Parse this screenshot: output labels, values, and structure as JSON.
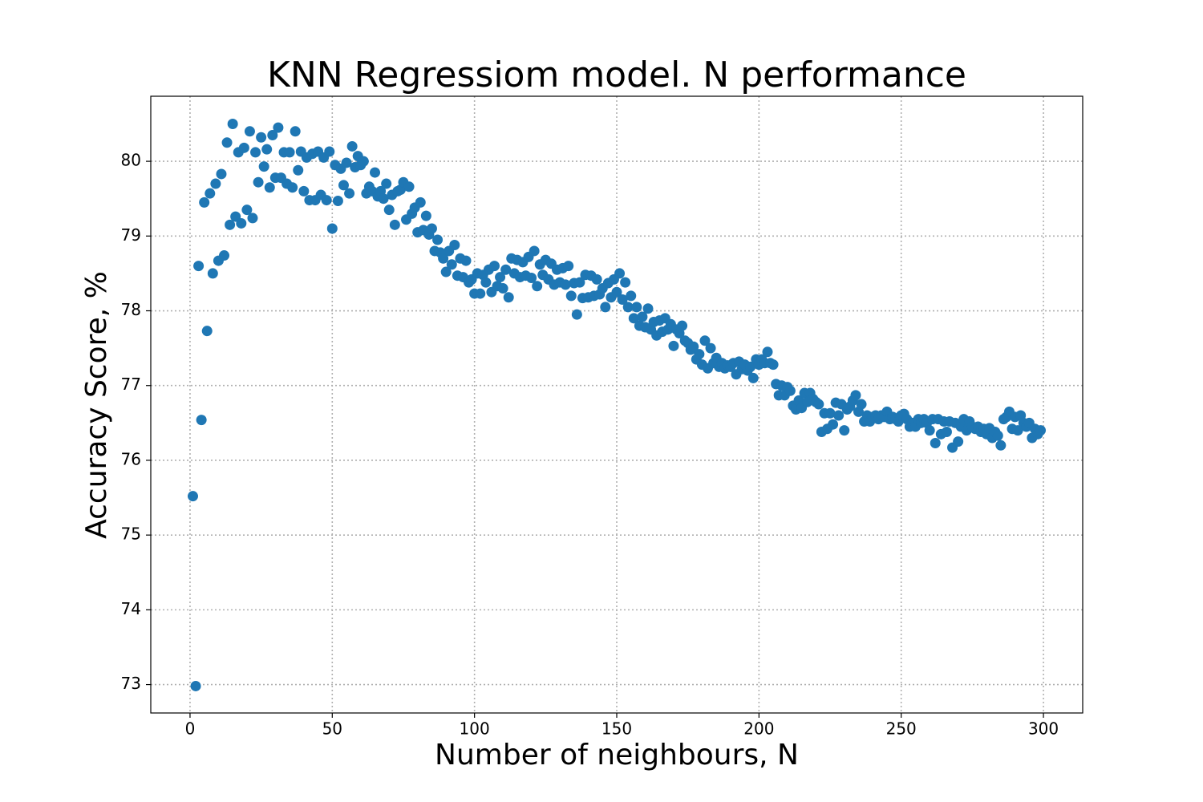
{
  "chart_data": {
    "type": "scatter",
    "title": "KNN Regressiom model. N performance",
    "x_label": "Number of neighbours, N",
    "y_label": "Accuracy Score, %",
    "color": "#1f77b4",
    "grid": true,
    "xlim": [
      -13.8,
      313.8
    ],
    "ylim": [
      72.62,
      80.87
    ],
    "xticks": [
      0,
      50,
      100,
      150,
      200,
      250,
      300
    ],
    "yticks": [
      73,
      74,
      75,
      76,
      77,
      78,
      79,
      80
    ],
    "x": [
      1,
      2,
      3,
      4,
      5,
      6,
      7,
      8,
      9,
      10,
      11,
      12,
      13,
      14,
      15,
      16,
      17,
      18,
      19,
      20,
      21,
      22,
      23,
      24,
      25,
      26,
      27,
      28,
      29,
      30,
      31,
      32,
      33,
      34,
      35,
      36,
      37,
      38,
      39,
      40,
      41,
      42,
      43,
      44,
      45,
      46,
      47,
      48,
      49,
      50,
      51,
      52,
      53,
      54,
      55,
      56,
      57,
      58,
      59,
      60,
      61,
      62,
      63,
      64,
      65,
      66,
      67,
      68,
      69,
      70,
      71,
      72,
      73,
      74,
      75,
      76,
      77,
      78,
      79,
      80,
      81,
      82,
      83,
      84,
      85,
      86,
      87,
      88,
      89,
      90,
      91,
      92,
      93,
      94,
      95,
      96,
      97,
      98,
      99,
      100,
      101,
      102,
      103,
      104,
      105,
      106,
      107,
      108,
      109,
      110,
      111,
      112,
      113,
      114,
      115,
      116,
      117,
      118,
      119,
      120,
      121,
      122,
      123,
      124,
      125,
      126,
      127,
      128,
      129,
      130,
      131,
      132,
      133,
      134,
      135,
      136,
      137,
      138,
      139,
      140,
      141,
      142,
      143,
      144,
      145,
      146,
      147,
      148,
      149,
      150,
      151,
      152,
      153,
      154,
      155,
      156,
      157,
      158,
      159,
      160,
      161,
      162,
      163,
      164,
      165,
      166,
      167,
      168,
      169,
      170,
      171,
      172,
      173,
      174,
      175,
      176,
      177,
      178,
      179,
      180,
      181,
      182,
      183,
      184,
      185,
      186,
      187,
      188,
      189,
      190,
      191,
      192,
      193,
      194,
      195,
      196,
      197,
      198,
      199,
      200,
      201,
      202,
      203,
      204,
      205,
      206,
      207,
      208,
      209,
      210,
      211,
      212,
      213,
      214,
      215,
      216,
      217,
      218,
      219,
      220,
      221,
      222,
      223,
      224,
      225,
      226,
      227,
      228,
      229,
      230,
      231,
      232,
      233,
      234,
      235,
      236,
      237,
      238,
      239,
      240,
      241,
      242,
      243,
      244,
      245,
      246,
      247,
      248,
      249,
      250,
      251,
      252,
      253,
      254,
      255,
      256,
      257,
      258,
      259,
      260,
      261,
      262,
      263,
      264,
      265,
      266,
      267,
      268,
      269,
      270,
      271,
      272,
      273,
      274,
      275,
      276,
      277,
      278,
      279,
      280,
      281,
      282,
      283,
      284,
      285,
      286,
      287,
      288,
      289,
      290,
      291,
      292,
      293,
      294,
      295,
      296,
      297,
      298,
      299
    ],
    "values": [
      75.52,
      72.98,
      78.6,
      76.54,
      79.45,
      77.73,
      79.57,
      78.5,
      79.7,
      78.67,
      79.83,
      78.74,
      80.25,
      79.15,
      80.5,
      79.26,
      80.12,
      79.17,
      80.18,
      79.35,
      80.4,
      79.24,
      80.12,
      79.72,
      80.32,
      79.93,
      80.16,
      79.65,
      80.35,
      79.78,
      80.45,
      79.78,
      80.12,
      79.7,
      80.12,
      79.65,
      80.4,
      79.88,
      80.13,
      79.6,
      80.05,
      79.48,
      80.1,
      79.48,
      80.13,
      79.55,
      80.05,
      79.48,
      80.13,
      79.1,
      79.95,
      79.47,
      79.9,
      79.68,
      79.98,
      79.57,
      80.2,
      79.92,
      80.07,
      79.95,
      80.0,
      79.57,
      79.66,
      79.6,
      79.85,
      79.53,
      79.6,
      79.5,
      79.7,
      79.35,
      79.55,
      79.15,
      79.6,
      79.62,
      79.72,
      79.22,
      79.66,
      79.3,
      79.38,
      79.05,
      79.45,
      79.08,
      79.27,
      79.02,
      79.1,
      78.8,
      78.95,
      78.78,
      78.7,
      78.52,
      78.8,
      78.62,
      78.88,
      78.47,
      78.7,
      78.45,
      78.67,
      78.38,
      78.42,
      78.23,
      78.5,
      78.23,
      78.48,
      78.38,
      78.55,
      78.25,
      78.6,
      78.33,
      78.45,
      78.3,
      78.55,
      78.18,
      78.7,
      78.5,
      78.68,
      78.45,
      78.65,
      78.47,
      78.72,
      78.44,
      78.8,
      78.33,
      78.62,
      78.48,
      78.68,
      78.42,
      78.63,
      78.35,
      78.55,
      78.38,
      78.57,
      78.35,
      78.6,
      78.2,
      78.37,
      77.95,
      78.38,
      78.17,
      78.48,
      78.18,
      78.47,
      78.2,
      78.42,
      78.22,
      78.3,
      78.05,
      78.37,
      78.18,
      78.42,
      78.25,
      78.5,
      78.15,
      78.38,
      78.05,
      78.2,
      77.9,
      78.05,
      77.8,
      77.92,
      77.78,
      78.03,
      77.75,
      77.85,
      77.67,
      77.87,
      77.72,
      77.9,
      77.75,
      77.82,
      77.53,
      77.75,
      77.7,
      77.8,
      77.6,
      77.57,
      77.48,
      77.52,
      77.35,
      77.42,
      77.28,
      77.6,
      77.23,
      77.5,
      77.3,
      77.37,
      77.25,
      77.3,
      77.23,
      77.27,
      77.25,
      77.3,
      77.15,
      77.32,
      77.22,
      77.28,
      77.2,
      77.25,
      77.1,
      77.35,
      77.28,
      77.35,
      77.3,
      77.45,
      77.3,
      77.28,
      77.02,
      76.87,
      77.0,
      76.87,
      76.98,
      76.93,
      76.73,
      76.68,
      76.8,
      76.7,
      76.9,
      76.78,
      76.9,
      76.82,
      76.78,
      76.75,
      76.38,
      76.63,
      76.42,
      76.63,
      76.48,
      76.77,
      76.6,
      76.75,
      76.4,
      76.68,
      76.72,
      76.8,
      76.87,
      76.65,
      76.75,
      76.52,
      76.6,
      76.52,
      76.58,
      76.6,
      76.55,
      76.6,
      76.58,
      76.65,
      76.55,
      76.58,
      76.55,
      76.52,
      76.6,
      76.62,
      76.55,
      76.45,
      76.5,
      76.45,
      76.55,
      76.5,
      76.55,
      76.5,
      76.4,
      76.55,
      76.23,
      76.55,
      76.35,
      76.52,
      76.38,
      76.52,
      76.17,
      76.5,
      76.25,
      76.45,
      76.55,
      76.4,
      76.52,
      76.45,
      76.42,
      76.45,
      76.38,
      76.42,
      76.35,
      76.43,
      76.3,
      76.38,
      76.33,
      76.2,
      76.55,
      76.58,
      76.65,
      76.42,
      76.58,
      76.4,
      76.6,
      76.5,
      76.45,
      76.5,
      76.3,
      76.42,
      76.35,
      76.4
    ]
  }
}
